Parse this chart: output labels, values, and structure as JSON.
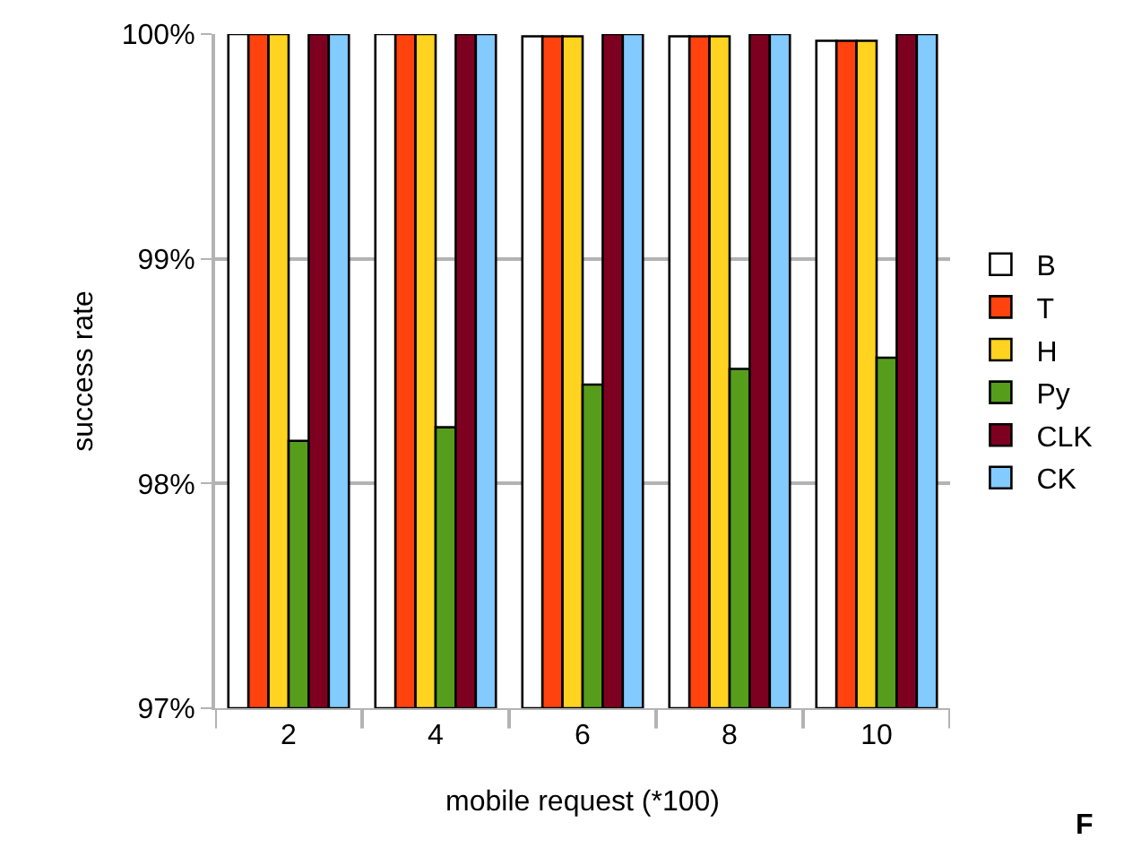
{
  "chart_data": {
    "type": "bar",
    "xlabel": "mobile request (*100)",
    "ylabel": "success rate",
    "categories": [
      "2",
      "4",
      "6",
      "8",
      "10"
    ],
    "series": [
      {
        "name": "B",
        "color": "#ffffff",
        "values": [
          100,
          100,
          99.99,
          99.99,
          99.97
        ]
      },
      {
        "name": "T",
        "color": "#ff420e",
        "values": [
          100,
          100,
          99.99,
          99.99,
          99.97
        ]
      },
      {
        "name": "H",
        "color": "#ffd320",
        "values": [
          100,
          100,
          99.99,
          99.99,
          99.97
        ]
      },
      {
        "name": "Py",
        "color": "#579d1c",
        "values": [
          98.19,
          98.25,
          98.44,
          98.51,
          98.56
        ]
      },
      {
        "name": "CLK",
        "color": "#7e0021",
        "values": [
          100,
          100,
          100,
          100,
          100
        ]
      },
      {
        "name": "CK",
        "color": "#83caff",
        "values": [
          100,
          100,
          100,
          100,
          100
        ]
      }
    ],
    "ylim": [
      97,
      100
    ],
    "yticks": [
      {
        "value": 97,
        "label": "97%"
      },
      {
        "value": 98,
        "label": "98%"
      },
      {
        "value": 99,
        "label": "99%"
      },
      {
        "value": 100,
        "label": "100%"
      }
    ],
    "grid": "y",
    "legend": "right",
    "annotations": [
      "F"
    ]
  }
}
